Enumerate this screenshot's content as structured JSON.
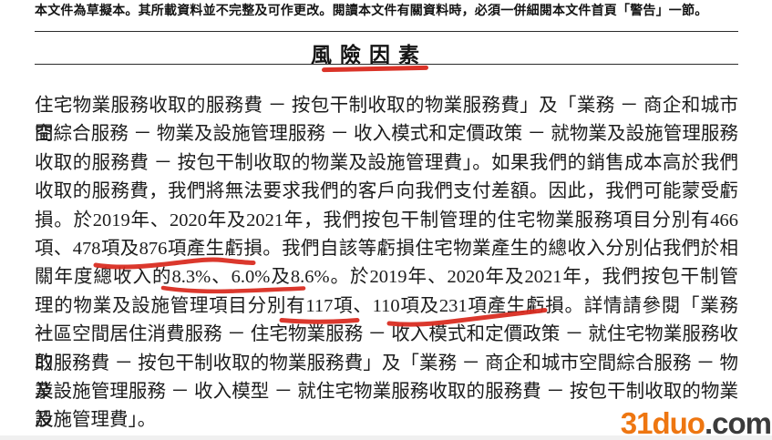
{
  "page": {
    "disclaimer": "本文件為草擬本。其所載資料並不完整及可作更改。閱讀本文件有關資料時，必須一併細閱本文件首頁「警告」一節。",
    "title": "風險因素"
  },
  "body": {
    "lines": [
      "住宅物業服務收取的服務費 － 按包干制收取的物業服務費」及「業務 － 商企和城市空",
      "間綜合服務 － 物業及設施管理服務 － 收入模式和定價政策 － 就物業及設施管理服務",
      "收取的服務費 － 按包干制收取的物業及設施管理費」。如果我們的銷售成本高於我們",
      "收取的服務費，我們將無法要求我們的客戶向我們支付差額。因此，我們可能蒙受虧",
      "損。於2019年、2020年及2021年，我們按包干制管理的住宅物業服務項目分別有466",
      "項、478項及876項產生虧損。我們自該等虧損住宅物業產生的總收入分別佔我們於相",
      "關年度總收入的8.3%、6.0%及8.6%。於2019年、2020年及2021年，我們按包干制管",
      "理的物業及設施管理項目分別有117項、110項及231項產生虧損。詳情請參閱「業務 －",
      "社區空間居住消費服務 － 住宅物業服務 － 收入模式和定價政策 － 就住宅物業服務收取",
      "的服務費 － 按包干制收取的物業服務費」及「業務 － 商企和城市空間綜合服務 － 物業",
      "及設施管理服務 － 收入模型 － 就住宅物業服務收取的服務費 － 按包干制收取的物業及",
      "設施管理費」。"
    ]
  },
  "annotations": {
    "color": "#d8281c",
    "marks": [
      {
        "target": "title",
        "text": "風險因素"
      },
      {
        "target": "line-6",
        "text": "478項及876項產生虧損"
      },
      {
        "target": "line-7",
        "text": "8.3%、6.0%及8.6%"
      },
      {
        "target": "line-8",
        "text": "117項"
      },
      {
        "target": "line-8",
        "text": "110項及231項產生虧損"
      }
    ]
  },
  "watermark": {
    "brand": "31duo",
    "suffix": ".com",
    "brand_color": "#ee7611",
    "suffix_color": "#3b3b3b"
  }
}
